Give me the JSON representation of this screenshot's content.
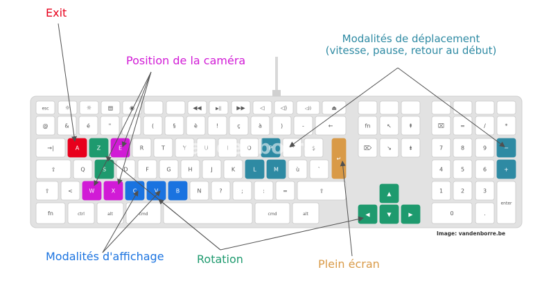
{
  "annotations": {
    "exit": "Exit",
    "camera": "Position de la caméra",
    "movement_line1": "Modalités de déplacement",
    "movement_line2": "(vitesse, pause, retour au début)",
    "display": "Modalités d'affichage",
    "rotation": "Rotation",
    "fullscreen": "Plein écran"
  },
  "credit": "Image: vandenborre.be",
  "watermark": "vandenborre",
  "colors": {
    "exit": "#e8001c",
    "camera": "#d11bd6",
    "movement": "#2e8aa3",
    "display": "#1a73e0",
    "rotation": "#1e9a6e",
    "fullscreen": "#d99a47",
    "key_face": "#ffffff",
    "key_border": "#c8c8c8",
    "case": "#e2e2e2",
    "arrow": "#505050"
  },
  "keys": [
    {
      "id": "row0-0",
      "lbl": "esc",
      "c": ""
    },
    {
      "id": "row0-1",
      "lbl": "☼",
      "c": ""
    },
    {
      "id": "row0-2",
      "lbl": "☼",
      "c": ""
    },
    {
      "id": "row0-3",
      "lbl": "▤",
      "c": ""
    },
    {
      "id": "row0-4",
      "lbl": "◉",
      "c": ""
    },
    {
      "id": "row0-5",
      "lbl": "",
      "c": ""
    },
    {
      "id": "row0-6",
      "lbl": "",
      "c": ""
    },
    {
      "id": "row0-7",
      "lbl": "◀◀",
      "c": ""
    },
    {
      "id": "row0-8",
      "lbl": "▶||",
      "c": ""
    },
    {
      "id": "row0-9",
      "lbl": "▶▶",
      "c": ""
    },
    {
      "id": "row0-10",
      "lbl": "◁",
      "c": ""
    },
    {
      "id": "row0-11",
      "lbl": "◁)",
      "c": ""
    },
    {
      "id": "row0-12",
      "lbl": "◁))",
      "c": ""
    },
    {
      "id": "row0-13",
      "lbl": "⏏",
      "c": ""
    },
    {
      "id": "row1-0",
      "lbl": "@",
      "c": ""
    },
    {
      "id": "row1-1",
      "lbl": "&",
      "c": ""
    },
    {
      "id": "row1-2",
      "lbl": "é",
      "c": ""
    },
    {
      "id": "row1-3",
      "lbl": "\"",
      "c": ""
    },
    {
      "id": "row1-4",
      "lbl": "'",
      "c": ""
    },
    {
      "id": "row1-5",
      "lbl": "(",
      "c": ""
    },
    {
      "id": "row1-6",
      "lbl": "§",
      "c": ""
    },
    {
      "id": "row1-7",
      "lbl": "è",
      "c": ""
    },
    {
      "id": "row1-8",
      "lbl": "!",
      "c": ""
    },
    {
      "id": "row1-9",
      "lbl": "ç",
      "c": ""
    },
    {
      "id": "row1-10",
      "lbl": "à",
      "c": ""
    },
    {
      "id": "row1-11",
      "lbl": ")",
      "c": ""
    },
    {
      "id": "row1-12",
      "lbl": "-",
      "c": ""
    },
    {
      "id": "row1-13",
      "lbl": "←",
      "c": ""
    },
    {
      "id": "row2-0",
      "lbl": "→|",
      "c": ""
    },
    {
      "id": "row2-1",
      "lbl": "A",
      "c": "exit"
    },
    {
      "id": "row2-2",
      "lbl": "Z",
      "c": "rotation"
    },
    {
      "id": "row2-3",
      "lbl": "E",
      "c": "camera"
    },
    {
      "id": "row2-4",
      "lbl": "R",
      "c": ""
    },
    {
      "id": "row2-5",
      "lbl": "T",
      "c": ""
    },
    {
      "id": "row2-6",
      "lbl": "Y",
      "c": ""
    },
    {
      "id": "row2-7",
      "lbl": "U",
      "c": ""
    },
    {
      "id": "row2-8",
      "lbl": "I",
      "c": ""
    },
    {
      "id": "row2-9",
      "lbl": "O",
      "c": ""
    },
    {
      "id": "row2-10",
      "lbl": "P",
      "c": "movement"
    },
    {
      "id": "row2-11",
      "lbl": "^",
      "c": ""
    },
    {
      "id": "row2-12",
      "lbl": "$",
      "c": ""
    },
    {
      "id": "row2-13",
      "lbl": "↵",
      "c": "fullscreen"
    },
    {
      "id": "row3-0",
      "lbl": "⇪",
      "c": ""
    },
    {
      "id": "row3-1",
      "lbl": "Q",
      "c": ""
    },
    {
      "id": "row3-2",
      "lbl": "S",
      "c": "rotation"
    },
    {
      "id": "row3-3",
      "lbl": "D",
      "c": ""
    },
    {
      "id": "row3-4",
      "lbl": "F",
      "c": ""
    },
    {
      "id": "row3-5",
      "lbl": "G",
      "c": ""
    },
    {
      "id": "row3-6",
      "lbl": "H",
      "c": ""
    },
    {
      "id": "row3-7",
      "lbl": "J",
      "c": ""
    },
    {
      "id": "row3-8",
      "lbl": "K",
      "c": ""
    },
    {
      "id": "row3-9",
      "lbl": "L",
      "c": "movement"
    },
    {
      "id": "row3-10",
      "lbl": "M",
      "c": "movement"
    },
    {
      "id": "row3-11",
      "lbl": "ù",
      "c": ""
    },
    {
      "id": "row3-12",
      "lbl": "`",
      "c": ""
    },
    {
      "id": "row4-0",
      "lbl": "⇧",
      "c": ""
    },
    {
      "id": "row4-1",
      "lbl": "<",
      "c": ""
    },
    {
      "id": "row4-2",
      "lbl": "W",
      "c": "camera"
    },
    {
      "id": "row4-3",
      "lbl": "X",
      "c": "camera"
    },
    {
      "id": "row4-4",
      "lbl": "C",
      "c": "display"
    },
    {
      "id": "row4-5",
      "lbl": "V",
      "c": "display"
    },
    {
      "id": "row4-6",
      "lbl": "B",
      "c": "display"
    },
    {
      "id": "row4-7",
      "lbl": "N",
      "c": ""
    },
    {
      "id": "row4-8",
      "lbl": "?",
      "c": ""
    },
    {
      "id": "row4-9",
      "lbl": ";",
      "c": ""
    },
    {
      "id": "row4-10",
      "lbl": ":",
      "c": ""
    },
    {
      "id": "row4-11",
      "lbl": "=",
      "c": ""
    },
    {
      "id": "row4-12",
      "lbl": "⇧",
      "c": ""
    },
    {
      "id": "row5-0",
      "lbl": "fn",
      "c": ""
    },
    {
      "id": "row5-1",
      "lbl": "ctrl",
      "c": ""
    },
    {
      "id": "row5-2",
      "lbl": "alt",
      "c": ""
    },
    {
      "id": "row5-3",
      "lbl": "cmd",
      "c": ""
    },
    {
      "id": "row5-4",
      "lbl": "",
      "c": ""
    },
    {
      "id": "row5-5",
      "lbl": "cmd",
      "c": ""
    },
    {
      "id": "row5-6",
      "lbl": "alt",
      "c": ""
    },
    {
      "id": "nav-0",
      "lbl": "",
      "c": ""
    },
    {
      "id": "nav-1",
      "lbl": "",
      "c": ""
    },
    {
      "id": "nav-2",
      "lbl": "",
      "c": ""
    },
    {
      "id": "nav-3",
      "lbl": "fn",
      "c": ""
    },
    {
      "id": "nav-4",
      "lbl": "↖",
      "c": ""
    },
    {
      "id": "nav-5",
      "lbl": "⇞",
      "c": ""
    },
    {
      "id": "nav-6",
      "lbl": "⌦",
      "c": ""
    },
    {
      "id": "nav-7",
      "lbl": "↘",
      "c": ""
    },
    {
      "id": "nav-8",
      "lbl": "⇟",
      "c": ""
    },
    {
      "id": "nav-9",
      "lbl": "▲",
      "c": "rotation"
    },
    {
      "id": "nav-10",
      "lbl": "◀",
      "c": "rotation"
    },
    {
      "id": "nav-11",
      "lbl": "▼",
      "c": "rotation"
    },
    {
      "id": "nav-12",
      "lbl": "▶",
      "c": "rotation"
    },
    {
      "id": "pad-0",
      "lbl": "",
      "c": ""
    },
    {
      "id": "pad-1",
      "lbl": "",
      "c": ""
    },
    {
      "id": "pad-2",
      "lbl": "",
      "c": ""
    },
    {
      "id": "pad-3",
      "lbl": "",
      "c": ""
    },
    {
      "id": "pad-4",
      "lbl": "⌧",
      "c": ""
    },
    {
      "id": "pad-5",
      "lbl": "=",
      "c": ""
    },
    {
      "id": "pad-6",
      "lbl": "/",
      "c": ""
    },
    {
      "id": "pad-7",
      "lbl": "*",
      "c": ""
    },
    {
      "id": "pad-8",
      "lbl": "7",
      "c": ""
    },
    {
      "id": "pad-9",
      "lbl": "8",
      "c": ""
    },
    {
      "id": "pad-10",
      "lbl": "9",
      "c": ""
    },
    {
      "id": "pad-11",
      "lbl": "−",
      "c": "movement"
    },
    {
      "id": "pad-12",
      "lbl": "4",
      "c": ""
    },
    {
      "id": "pad-13",
      "lbl": "5",
      "c": ""
    },
    {
      "id": "pad-14",
      "lbl": "6",
      "c": ""
    },
    {
      "id": "pad-15",
      "lbl": "+",
      "c": "movement"
    },
    {
      "id": "pad-16",
      "lbl": "1",
      "c": ""
    },
    {
      "id": "pad-17",
      "lbl": "2",
      "c": ""
    },
    {
      "id": "pad-18",
      "lbl": "3",
      "c": ""
    },
    {
      "id": "pad-19",
      "lbl": "enter",
      "c": ""
    },
    {
      "id": "pad-20",
      "lbl": "0",
      "c": ""
    },
    {
      "id": "pad-21",
      "lbl": ".",
      "c": ""
    }
  ]
}
